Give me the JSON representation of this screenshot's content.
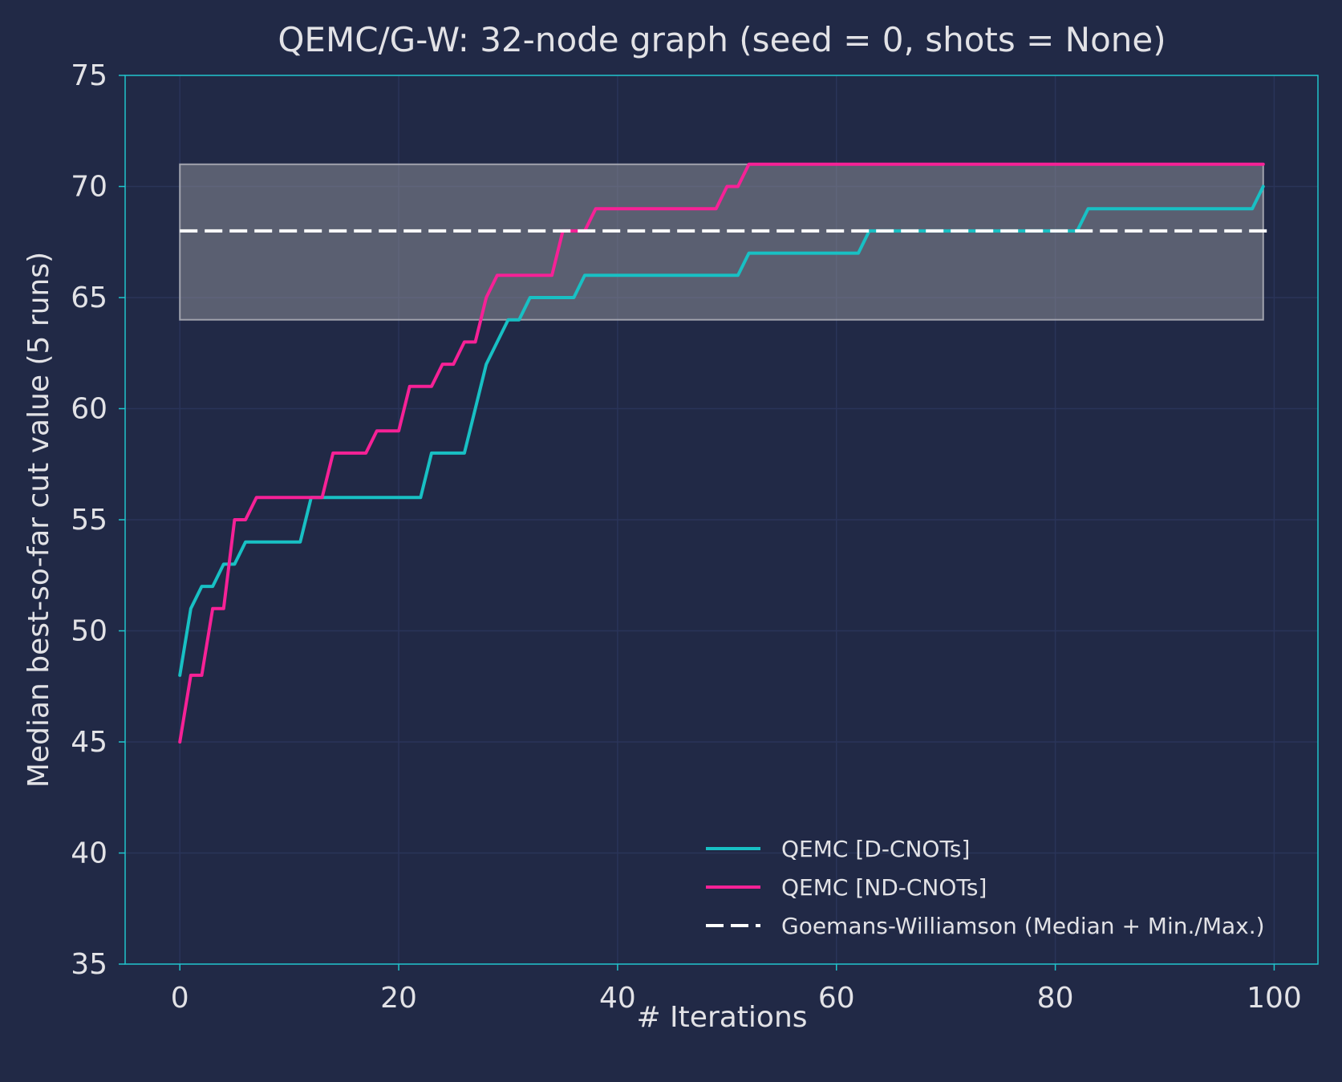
{
  "chart_data": {
    "type": "line",
    "title": "QEMC/G-W: 32-node graph (seed = 0, shots = None)",
    "xlabel": "# Iterations",
    "ylabel": "Median best-so-far cut value (5 runs)",
    "xlim": [
      -5,
      104
    ],
    "ylim": [
      35,
      75
    ],
    "xticks": [
      0,
      20,
      40,
      60,
      80,
      100
    ],
    "yticks": [
      35,
      40,
      45,
      50,
      55,
      60,
      65,
      70,
      75
    ],
    "grid": true,
    "legend_position": "bottom-right",
    "colors": {
      "background": "#212946",
      "grid": "#2A3459",
      "spine": "#20c4cc",
      "d_cnots": "#18c0c4",
      "nd_cnots": "#f62196",
      "gw": "#ffffff",
      "band": "#8a8c96",
      "text": "#e2e2e6"
    },
    "series": [
      {
        "name": "QEMC [D-CNOTs]",
        "x": [
          0,
          1,
          2,
          3,
          4,
          5,
          6,
          7,
          8,
          9,
          10,
          11,
          12,
          13,
          14,
          15,
          16,
          17,
          18,
          19,
          20,
          21,
          22,
          23,
          24,
          25,
          26,
          27,
          28,
          29,
          30,
          31,
          32,
          33,
          34,
          35,
          36,
          37,
          38,
          39,
          40,
          41,
          42,
          43,
          44,
          45,
          46,
          47,
          48,
          49,
          50,
          51,
          52,
          53,
          54,
          55,
          56,
          57,
          58,
          59,
          60,
          61,
          62,
          63,
          64,
          65,
          66,
          67,
          68,
          69,
          70,
          71,
          72,
          73,
          74,
          75,
          76,
          77,
          78,
          79,
          80,
          81,
          82,
          83,
          84,
          85,
          86,
          87,
          88,
          89,
          90,
          91,
          92,
          93,
          94,
          95,
          96,
          97,
          98,
          99
        ],
        "y": [
          48,
          51,
          52,
          52,
          53,
          53,
          54,
          54,
          54,
          54,
          54,
          54,
          56,
          56,
          56,
          56,
          56,
          56,
          56,
          56,
          56,
          56,
          56,
          58,
          58,
          58,
          58,
          60,
          62,
          63,
          64,
          64,
          65,
          65,
          65,
          65,
          65,
          66,
          66,
          66,
          66,
          66,
          66,
          66,
          66,
          66,
          66,
          66,
          66,
          66,
          66,
          66,
          67,
          67,
          67,
          67,
          67,
          67,
          67,
          67,
          67,
          67,
          67,
          68,
          68,
          68,
          68,
          68,
          68,
          68,
          68,
          68,
          68,
          68,
          68,
          68,
          68,
          68,
          68,
          68,
          68,
          68,
          68,
          69,
          69,
          69,
          69,
          69,
          69,
          69,
          69,
          69,
          69,
          69,
          69,
          69,
          69,
          69,
          69,
          70
        ]
      },
      {
        "name": "QEMC [ND-CNOTs]",
        "x": [
          0,
          1,
          2,
          3,
          4,
          5,
          6,
          7,
          8,
          9,
          10,
          11,
          12,
          13,
          14,
          15,
          16,
          17,
          18,
          19,
          20,
          21,
          22,
          23,
          24,
          25,
          26,
          27,
          28,
          29,
          30,
          31,
          32,
          33,
          34,
          35,
          36,
          37,
          38,
          39,
          40,
          41,
          42,
          43,
          44,
          45,
          46,
          47,
          48,
          49,
          50,
          51,
          52,
          53,
          54,
          55,
          56,
          57,
          58,
          59,
          60,
          61,
          62,
          63,
          64,
          65,
          66,
          67,
          68,
          69,
          70,
          71,
          72,
          73,
          74,
          75,
          76,
          77,
          78,
          79,
          80,
          81,
          82,
          83,
          84,
          85,
          86,
          87,
          88,
          89,
          90,
          91,
          92,
          93,
          94,
          95,
          96,
          97,
          98,
          99
        ],
        "y": [
          45,
          48,
          48,
          51,
          51,
          55,
          55,
          56,
          56,
          56,
          56,
          56,
          56,
          56,
          58,
          58,
          58,
          58,
          59,
          59,
          59,
          61,
          61,
          61,
          62,
          62,
          63,
          63,
          65,
          66,
          66,
          66,
          66,
          66,
          66,
          68,
          68,
          68,
          69,
          69,
          69,
          69,
          69,
          69,
          69,
          69,
          69,
          69,
          69,
          69,
          70,
          70,
          71,
          71,
          71,
          71,
          71,
          71,
          71,
          71,
          71,
          71,
          71,
          71,
          71,
          71,
          71,
          71,
          71,
          71,
          71,
          71,
          71,
          71,
          71,
          71,
          71,
          71,
          71,
          71,
          71,
          71,
          71,
          71,
          71,
          71,
          71,
          71,
          71,
          71,
          71,
          71,
          71,
          71,
          71,
          71,
          71,
          71,
          71,
          71
        ]
      },
      {
        "name": "Goemans-Williamson (Median + Min./Max.)",
        "x": [
          0,
          99
        ],
        "median": 68,
        "min": 64,
        "max": 71
      }
    ]
  }
}
